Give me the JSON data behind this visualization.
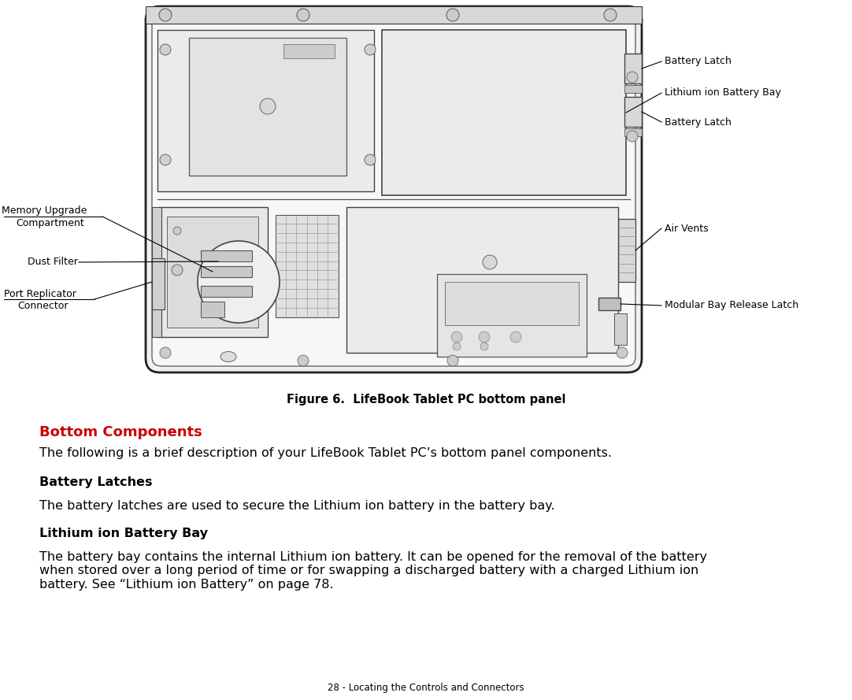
{
  "bg_color": "#ffffff",
  "figure_caption": "Figure 6.  LifeBook Tablet PC bottom panel",
  "section_title": "Bottom Components",
  "section_title_color": "#cc0000",
  "body_text_1": "The following is a brief description of your LifeBook Tablet PC’s bottom panel components.",
  "subhead_1": "Battery Latches",
  "body_text_2": "The battery latches are used to secure the Lithium ion battery in the battery bay.",
  "subhead_2": "Lithium ion Battery Bay",
  "body_text_3": "The battery bay contains the internal Lithium ion battery. It can be opened for the removal of the battery\nwhen stored over a long period of time or for swapping a discharged battery with a charged Lithium ion\nbattery. See “Lithium ion Battery” on page 78.",
  "footer_text": "28 - Locating the Controls and Connectors",
  "label_fontsize": 9,
  "body_fontsize": 11.5,
  "subhead_fontsize": 11.5,
  "section_title_fontsize": 13,
  "caption_fontsize": 10.5
}
